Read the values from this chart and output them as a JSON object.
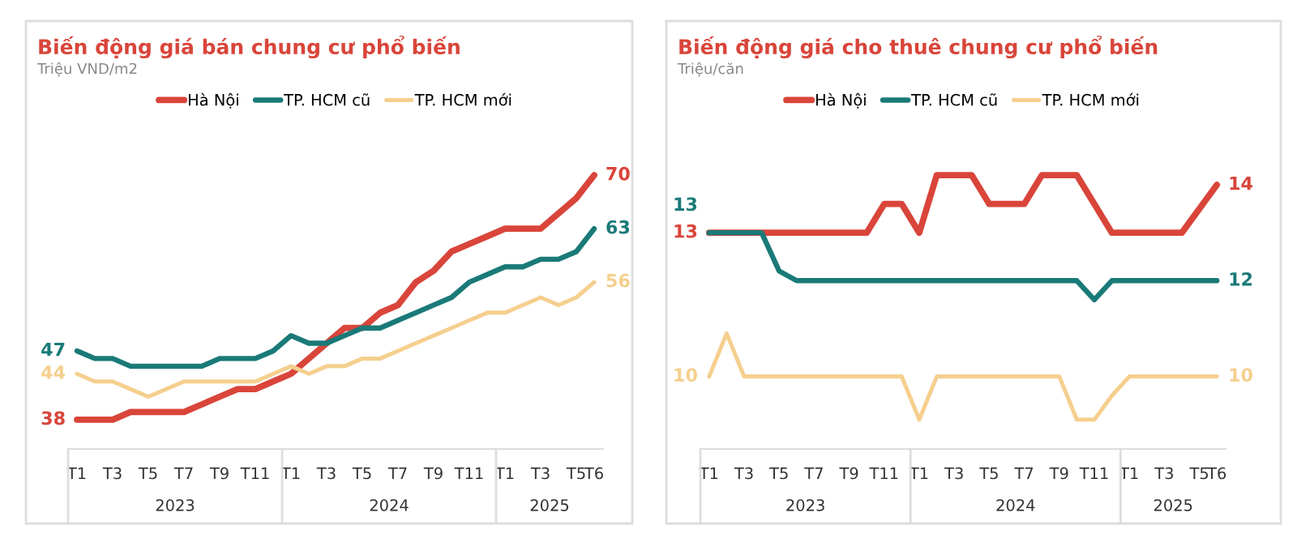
{
  "chart_data": [
    {
      "type": "line",
      "title": "Biến động giá bán chung cư phổ biến",
      "subtitle": "Triệu VND/m2",
      "categories": [
        "T1",
        null,
        "T3",
        null,
        "T5",
        null,
        "T7",
        null,
        "T9",
        null,
        "T11",
        null,
        "T1",
        null,
        "T3",
        null,
        "T5",
        null,
        "T7",
        null,
        "T9",
        null,
        "T11",
        null,
        "T1",
        null,
        "T3",
        null,
        "T5",
        "T6"
      ],
      "annotations": [
        "2023",
        "2024",
        "2025"
      ],
      "legend": "top",
      "grid": false,
      "marker": "none",
      "line_style": "solid",
      "series": [
        {
          "name": "Hà Nội",
          "color": "#d9453a",
          "values": [
            38,
            38,
            38,
            39,
            39,
            39,
            39,
            40,
            41,
            42,
            42,
            43,
            44,
            46,
            48,
            50,
            50,
            52,
            53,
            56,
            57.5,
            60,
            61,
            62,
            63,
            63,
            63,
            65,
            67,
            70
          ],
          "value_labels": [
            "38",
            null,
            null,
            null,
            null,
            null,
            null,
            null,
            null,
            null,
            null,
            null,
            null,
            null,
            null,
            null,
            null,
            null,
            null,
            null,
            null,
            null,
            null,
            null,
            null,
            null,
            null,
            null,
            null,
            "70"
          ]
        },
        {
          "name": "TP. HCM cũ",
          "color": "#1a7a78",
          "values": [
            47,
            46,
            46,
            45,
            45,
            45,
            45,
            45,
            46,
            46,
            46,
            47,
            49,
            48,
            48,
            49,
            50,
            50,
            51,
            52,
            53,
            54,
            56,
            57,
            58,
            58,
            59,
            59,
            60,
            63
          ],
          "value_labels": [
            "47",
            null,
            null,
            null,
            null,
            null,
            null,
            null,
            null,
            null,
            null,
            null,
            null,
            null,
            null,
            null,
            null,
            null,
            null,
            null,
            null,
            null,
            null,
            null,
            null,
            null,
            null,
            null,
            null,
            "63"
          ]
        },
        {
          "name": "TP. HCM mới",
          "color": "#f5cf8e",
          "values": [
            44,
            43,
            43,
            42,
            41,
            42,
            43,
            43,
            43,
            43,
            43,
            44,
            45,
            44,
            45,
            45,
            46,
            46,
            47,
            48,
            49,
            50,
            51,
            52,
            52,
            53,
            54,
            53,
            54,
            56
          ],
          "value_labels": [
            "44",
            null,
            null,
            null,
            null,
            null,
            null,
            null,
            null,
            null,
            null,
            null,
            null,
            null,
            null,
            null,
            null,
            null,
            null,
            null,
            null,
            null,
            null,
            null,
            null,
            null,
            null,
            null,
            null,
            "56"
          ]
        }
      ]
    },
    {
      "type": "line",
      "title": "Biến động giá cho thuê chung cư phổ biến",
      "subtitle": "Triệu/căn",
      "categories": [
        "T1",
        null,
        "T3",
        null,
        "T5",
        null,
        "T7",
        null,
        "T9",
        null,
        "T11",
        null,
        "T1",
        null,
        "T3",
        null,
        "T5",
        null,
        "T7",
        null,
        "T9",
        null,
        "T11",
        null,
        "T1",
        null,
        "T3",
        null,
        "T5",
        "T6"
      ],
      "annotations": [
        "2023",
        "2024",
        "2025"
      ],
      "legend": "top",
      "grid": false,
      "marker": "none",
      "line_style": "solid",
      "series": [
        {
          "name": "Hà Nội",
          "color": "#d9453a",
          "values": [
            13,
            13,
            13,
            13,
            13,
            13,
            13,
            13,
            13,
            13,
            13.6,
            13.6,
            13,
            14.2,
            14.2,
            14.2,
            13.6,
            13.6,
            13.6,
            14.2,
            14.2,
            14.2,
            13.6,
            13,
            13,
            13,
            13,
            13,
            13.5,
            14
          ],
          "value_labels": [
            "13",
            null,
            null,
            null,
            null,
            null,
            null,
            null,
            null,
            null,
            null,
            null,
            null,
            null,
            null,
            null,
            null,
            null,
            null,
            null,
            null,
            null,
            null,
            null,
            null,
            null,
            null,
            null,
            null,
            "14"
          ]
        },
        {
          "name": "TP. HCM cũ",
          "color": "#1a7a78",
          "values": [
            13,
            13,
            13,
            13,
            12.2,
            12,
            12,
            12,
            12,
            12,
            12,
            12,
            12,
            12,
            12,
            12,
            12,
            12,
            12,
            12,
            12,
            12,
            11.6,
            12,
            12,
            12,
            12,
            12,
            12,
            12
          ],
          "value_labels": [
            "13",
            null,
            null,
            null,
            null,
            null,
            null,
            null,
            null,
            null,
            null,
            null,
            null,
            null,
            null,
            null,
            null,
            null,
            null,
            null,
            null,
            null,
            null,
            null,
            null,
            null,
            null,
            null,
            null,
            "12"
          ]
        },
        {
          "name": "TP. HCM mới",
          "color": "#f5cf8e",
          "values": [
            10,
            10.9,
            10,
            10,
            10,
            10,
            10,
            10,
            10,
            10,
            10,
            10,
            9.1,
            10,
            10,
            10,
            10,
            10,
            10,
            10,
            10,
            9.1,
            9.1,
            9.6,
            10,
            10,
            10,
            10,
            10,
            10
          ],
          "value_labels": [
            "10",
            null,
            null,
            null,
            null,
            null,
            null,
            null,
            null,
            null,
            null,
            null,
            null,
            null,
            null,
            null,
            null,
            null,
            null,
            null,
            null,
            null,
            null,
            null,
            null,
            null,
            null,
            null,
            null,
            "10"
          ]
        }
      ]
    }
  ]
}
